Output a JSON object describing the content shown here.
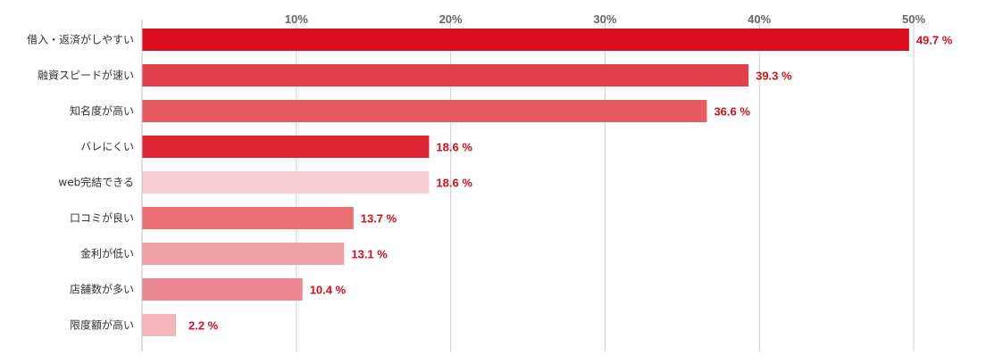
{
  "chart_data": {
    "type": "bar",
    "orientation": "horizontal",
    "title": "",
    "xlabel": "",
    "ylabel": "",
    "xlim": [
      0,
      50
    ],
    "ticks": [
      10,
      20,
      30,
      40,
      50
    ],
    "tick_labels": [
      "10%",
      "20%",
      "30%",
      "40%",
      "50%"
    ],
    "grid": true,
    "categories": [
      "借入・返済がしやすい",
      "融資スピードが速い",
      "知名度が高い",
      "バレにくい",
      "web完結できる",
      "口コミが良い",
      "金利が低い",
      "店舗数が多い",
      "限度額が高い"
    ],
    "values": [
      49.7,
      39.3,
      36.6,
      18.6,
      18.6,
      13.7,
      13.1,
      10.4,
      2.2
    ],
    "value_labels": [
      "49.7 %",
      "39.3 %",
      "36.6 %",
      "18.6 %",
      "18.6 %",
      "13.7 %",
      "13.1 %",
      "10.4 %",
      "2.2 %"
    ],
    "colors": [
      "#dc0d1c",
      "#e2404b",
      "#e85a62",
      "#de2633",
      "#f6ced3",
      "#ec6f76",
      "#f0a1a6",
      "#ec8990",
      "#f4b6ba"
    ],
    "label_color": "#d40f1c"
  }
}
